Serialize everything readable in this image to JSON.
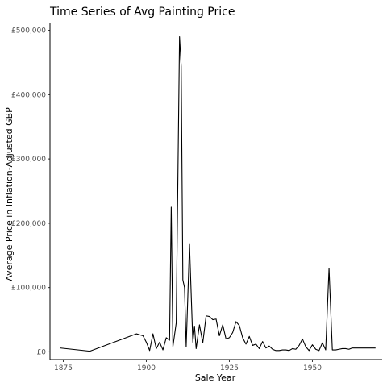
{
  "chart_data": {
    "type": "line",
    "title": "Time Series of Avg Painting Price",
    "xlabel": "Sale Year",
    "ylabel": "Average Price in Inflation-Adjusted GBP",
    "xlim": [
      1871,
      1971
    ],
    "ylim": [
      -12000,
      512000
    ],
    "x_ticks": [
      1875,
      1900,
      1925,
      1950
    ],
    "x_tick_labels": [
      "1875",
      "1900",
      "1925",
      "1950"
    ],
    "y_ticks": [
      0,
      100000,
      200000,
      300000,
      400000,
      500000
    ],
    "y_tick_labels": [
      "£0",
      "£100,000",
      "£200,000",
      "£300,000",
      "£400,000",
      "£500,000"
    ],
    "grid": false,
    "legend": "none",
    "series": [
      {
        "color": "#000000",
        "x": [
          1874,
          1883,
          1897,
          1899,
          1900,
          1901,
          1902,
          1903,
          1904,
          1905,
          1906,
          1907,
          1907.5,
          1908,
          1909,
          1910,
          1910.5,
          1911,
          1911.5,
          1912,
          1913,
          1914,
          1914.5,
          1915,
          1916,
          1917,
          1918,
          1919,
          1920,
          1921,
          1922,
          1923,
          1924,
          1925,
          1926,
          1927,
          1928,
          1929,
          1930,
          1931,
          1932,
          1933,
          1934,
          1935,
          1936,
          1937,
          1938,
          1939,
          1940,
          1941,
          1942,
          1943,
          1944,
          1945,
          1946,
          1947,
          1948,
          1949,
          1950,
          1951,
          1952,
          1953,
          1954,
          1955,
          1956,
          1957,
          1958,
          1959,
          1960,
          1961,
          1962,
          1963,
          1964,
          1965,
          1966,
          1967,
          1968,
          1969
        ],
        "values": [
          6000,
          1000,
          28000,
          25000,
          15000,
          2000,
          28000,
          5000,
          15000,
          3000,
          22000,
          18000,
          225000,
          8000,
          45000,
          490000,
          444000,
          112000,
          100000,
          8000,
          167000,
          15000,
          40000,
          5000,
          42000,
          14000,
          56000,
          55000,
          50000,
          51000,
          25000,
          42000,
          20000,
          22000,
          30000,
          47000,
          41000,
          22000,
          12000,
          24000,
          10000,
          12000,
          5000,
          16000,
          6000,
          9000,
          4000,
          2000,
          2000,
          3000,
          3000,
          2000,
          5000,
          4000,
          10000,
          20000,
          8000,
          2000,
          11000,
          4000,
          2000,
          14000,
          3000,
          130000,
          3000,
          3000,
          4000,
          5000,
          5000,
          4000,
          6000,
          6000,
          6000,
          6000,
          6000,
          6000,
          6000,
          6000
        ]
      }
    ]
  }
}
